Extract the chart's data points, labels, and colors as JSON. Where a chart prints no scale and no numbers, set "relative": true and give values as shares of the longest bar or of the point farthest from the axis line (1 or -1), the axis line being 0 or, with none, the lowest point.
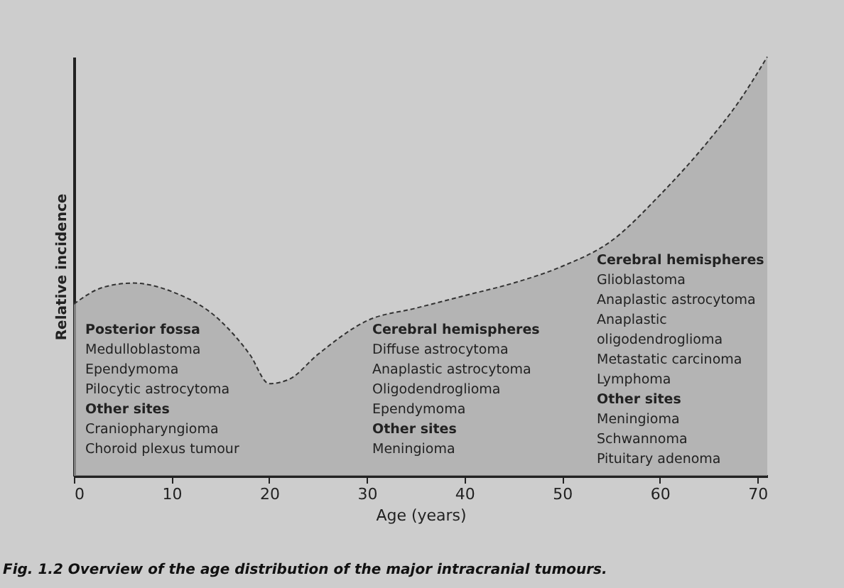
{
  "chart_data": {
    "type": "area",
    "relative": true,
    "xlabel": "Age (years)",
    "ylabel": "Relative incidence",
    "x": [
      0,
      3,
      6,
      10,
      15,
      18,
      20,
      22,
      25,
      30,
      35,
      40,
      45,
      50,
      55,
      60,
      65,
      68,
      71
    ],
    "series": [
      {
        "color": "#a9a9a9",
        "values": [
          0.41,
          0.45,
          0.46,
          0.44,
          0.37,
          0.29,
          0.22,
          0.23,
          0.29,
          0.37,
          0.4,
          0.43,
          0.46,
          0.5,
          0.56,
          0.67,
          0.8,
          0.89,
          1
        ]
      }
    ],
    "xlim": [
      0,
      71
    ],
    "xticks": [
      0,
      10,
      20,
      30,
      40,
      50,
      60,
      70
    ],
    "grid": false,
    "annotations": [
      "Posterior fossa\nMedulloblastoma\nEpendymoma\nPilocytic astrocytoma\nOther sites\nCraniopharyngioma\nChoroid plexus tumour",
      "Cerebral hemispheres\nDiffuse astrocytoma\nAnaplastic astrocytoma\nOligodendroglioma\nEpendymoma\nOther sites\nMeningioma",
      "Cerebral hemispheres\nGlioblastoma\nAnaplastic astrocytoma\nAnaplastic\n oligodendroglioma\nMetastatic carcinoma\nLymphoma\nOther sites\nMeningioma\nSchwannoma\nPituitary adenoma",
      "Fig. 1.2 Overview of the age distribution of the major intracranial tumours."
    ]
  }
}
